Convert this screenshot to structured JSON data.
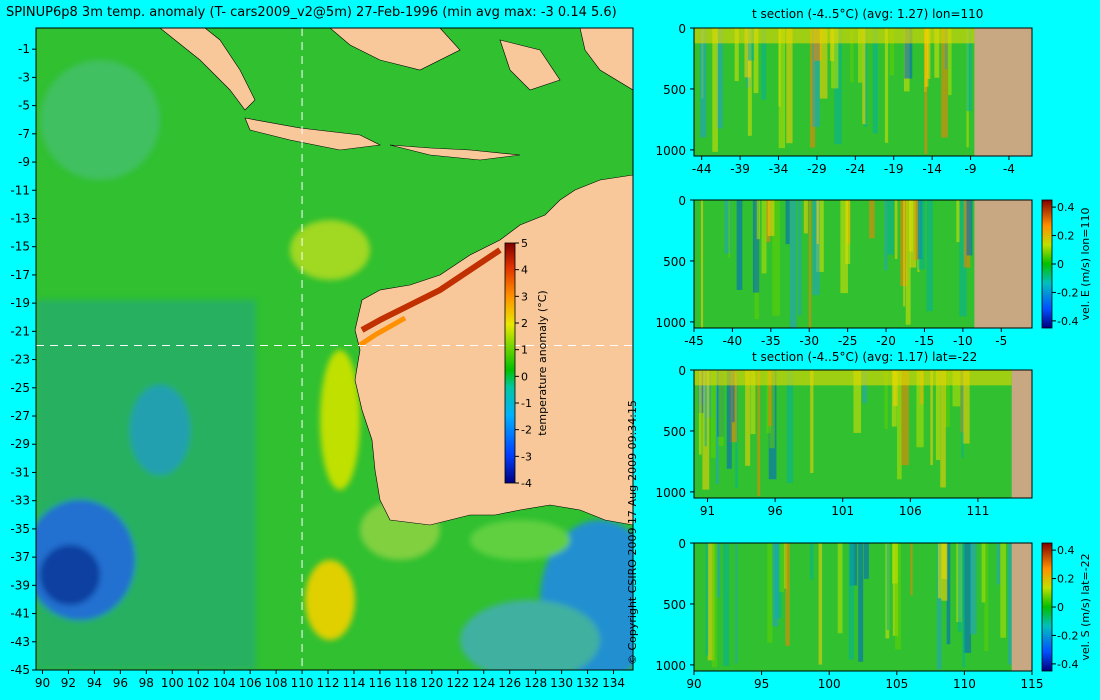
{
  "main_title": "SPINUP6p8 3m temp. anomaly (T- cars2009_v2@5m) 27-Feb-1996 (min avg max: -3 0.14 5.6)",
  "copyright": "© Copyright CSIRO 2009   17-Aug-2009 09:34:15",
  "colors": {
    "background": "#00ffff",
    "land": "#f8c89a",
    "section_land": "#c8a882",
    "crosshair": "#ffffff"
  },
  "chart_data": [
    {
      "type": "heatmap",
      "name": "map",
      "title": "SPINUP6p8 3m temp. anomaly (T- cars2009_v2@5m) 27-Feb-1996 (min avg max: -3 0.14 5.6)",
      "x_ticks": [
        "90",
        "92",
        "94",
        "96",
        "98",
        "100",
        "102",
        "104",
        "106",
        "108",
        "110",
        "112",
        "114",
        "116",
        "118",
        "120",
        "122",
        "124",
        "126",
        "128",
        "130",
        "132",
        "134"
      ],
      "y_ticks": [
        "-1",
        "-3",
        "-5",
        "-7",
        "-9",
        "-11",
        "-13",
        "-15",
        "-17",
        "-19",
        "-21",
        "-23",
        "-25",
        "-27",
        "-29",
        "-31",
        "-33",
        "-35",
        "-37",
        "-39",
        "-41",
        "-43",
        "-45"
      ],
      "xlim": [
        89.5,
        135.5
      ],
      "ylim": [
        -45,
        0.5
      ],
      "crosshair_lon": 110,
      "crosshair_lat": -22,
      "colorbar": {
        "label": "temperature anomaly (°C)",
        "ticks": [
          "5",
          "4",
          "3",
          "2",
          "1",
          "0",
          "-1",
          "-2",
          "-3",
          "-4"
        ],
        "range": [
          -4,
          5
        ]
      }
    },
    {
      "type": "heatmap",
      "name": "t_section_lon",
      "title": "t section (-4..5°C) (avg: 1.27) lon=110",
      "x_ticks": [
        "-44",
        "-39",
        "-34",
        "-29",
        "-24",
        "-19",
        "-14",
        "-9",
        "-4"
      ],
      "y_ticks": [
        "0",
        "500",
        "1000"
      ],
      "xlim": [
        -45,
        -1
      ],
      "ylim": [
        1050,
        0
      ],
      "land_from_x": -8.5
    },
    {
      "type": "heatmap",
      "name": "vel_e_section",
      "title": "",
      "x_ticks": [
        "-45",
        "-40",
        "-35",
        "-30",
        "-25",
        "-20",
        "-15",
        "-10",
        "-5"
      ],
      "y_ticks": [
        "0",
        "500",
        "1000"
      ],
      "xlim": [
        -45,
        -1
      ],
      "ylim": [
        1050,
        0
      ],
      "land_from_x": -8.5,
      "colorbar": {
        "label": "vel. E (m/s) lon=110",
        "ticks": [
          "0.4",
          "0.2",
          "0",
          "-0.2",
          "-0.4"
        ],
        "range": [
          -0.45,
          0.45
        ]
      }
    },
    {
      "type": "heatmap",
      "name": "t_section_lat",
      "title": "t section (-4..5°C) (avg: 1.17) lat=-22",
      "x_ticks": [
        "91",
        "96",
        "101",
        "106",
        "111"
      ],
      "y_ticks": [
        "0",
        "500",
        "1000"
      ],
      "xlim": [
        90,
        115
      ],
      "ylim": [
        1050,
        0
      ],
      "land_from_x": 113.5
    },
    {
      "type": "heatmap",
      "name": "vel_s_section",
      "title": "",
      "x_ticks": [
        "90",
        "95",
        "100",
        "105",
        "110",
        "115"
      ],
      "y_ticks": [
        "0",
        "500",
        "1000"
      ],
      "xlim": [
        90,
        115
      ],
      "ylim": [
        1050,
        0
      ],
      "land_from_x": 113.5,
      "colorbar": {
        "label": "vel. S (m/s) lat=-22",
        "ticks": [
          "0.4",
          "0.2",
          "0",
          "-0.2",
          "-0.4"
        ],
        "range": [
          -0.45,
          0.45
        ]
      }
    }
  ]
}
